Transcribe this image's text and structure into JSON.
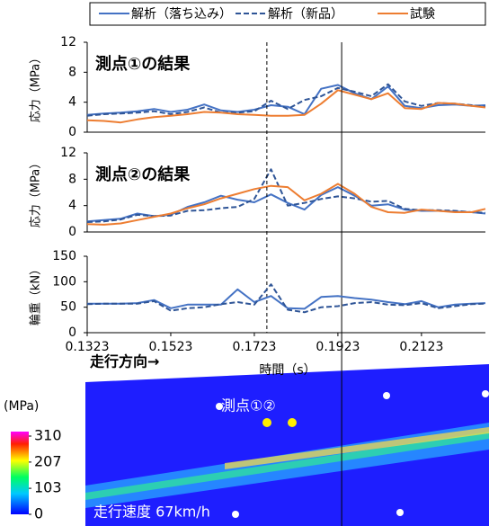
{
  "chart_data": [
    {
      "type": "line",
      "title": "測点①の結果",
      "ylabel": "応力（MPa）",
      "x": [
        0.1323,
        0.1363,
        0.1403,
        0.1443,
        0.1483,
        0.1523,
        0.1563,
        0.1603,
        0.1643,
        0.1683,
        0.1723,
        0.1763,
        0.1803,
        0.1843,
        0.1883,
        0.1923,
        0.1963,
        0.2003,
        0.2043,
        0.2083,
        0.2123,
        0.2163,
        0.2203,
        0.2243,
        0.2276
      ],
      "series": [
        {
          "name": "解析（落ち込み）",
          "color": "#4472c4",
          "dash": false,
          "values": [
            2.3,
            2.5,
            2.6,
            2.8,
            3.1,
            2.7,
            3.0,
            3.7,
            2.9,
            2.7,
            3.0,
            3.6,
            3.4,
            2.4,
            5.8,
            6.3,
            5.2,
            4.4,
            6.1,
            3.5,
            3.2,
            3.6,
            3.7,
            3.5,
            3.6
          ]
        },
        {
          "name": "解析（新品）",
          "color": "#2f5597",
          "dash": true,
          "values": [
            2.2,
            2.4,
            2.5,
            2.6,
            2.8,
            2.4,
            2.7,
            3.3,
            2.6,
            2.6,
            2.8,
            4.2,
            3.1,
            4.3,
            4.8,
            5.9,
            5.4,
            4.8,
            6.4,
            4.1,
            3.5,
            3.9,
            3.8,
            3.6,
            3.4
          ]
        },
        {
          "name": "試験",
          "color": "#ed7d31",
          "dash": false,
          "values": [
            1.6,
            1.5,
            1.3,
            1.7,
            2.0,
            2.2,
            2.4,
            2.7,
            2.6,
            2.4,
            2.3,
            2.2,
            2.2,
            2.3,
            3.8,
            5.6,
            5.0,
            4.4,
            5.2,
            3.2,
            3.1,
            3.9,
            3.8,
            3.5,
            3.3
          ]
        }
      ],
      "xlim": [
        0.1323,
        0.2276
      ],
      "ylim": [
        0,
        12
      ],
      "yticks": [
        0,
        4,
        8,
        12
      ]
    },
    {
      "type": "line",
      "title": "測点②の結果",
      "ylabel": "応力（MPa）",
      "x": [
        0.1323,
        0.1363,
        0.1403,
        0.1443,
        0.1483,
        0.1523,
        0.1563,
        0.1603,
        0.1643,
        0.1683,
        0.1723,
        0.1763,
        0.1803,
        0.1843,
        0.1883,
        0.1923,
        0.1963,
        0.2003,
        0.2043,
        0.2083,
        0.2123,
        0.2163,
        0.2203,
        0.2243,
        0.2276
      ],
      "series": [
        {
          "name": "解析（落ち込み）",
          "color": "#4472c4",
          "dash": false,
          "values": [
            1.6,
            1.8,
            2.0,
            2.8,
            2.4,
            2.6,
            3.8,
            4.5,
            5.5,
            4.9,
            4.5,
            5.7,
            4.4,
            3.4,
            5.6,
            6.8,
            5.5,
            4.0,
            4.2,
            3.4,
            3.2,
            3.2,
            3.1,
            3.0,
            2.8
          ]
        },
        {
          "name": "解析（新品）",
          "color": "#2f5597",
          "dash": true,
          "values": [
            1.5,
            1.6,
            1.9,
            2.6,
            2.4,
            2.5,
            3.2,
            3.3,
            3.6,
            3.8,
            5.0,
            9.5,
            4.0,
            4.4,
            5.0,
            5.4,
            5.1,
            4.6,
            4.7,
            3.5,
            3.3,
            3.3,
            3.2,
            3.0,
            2.9
          ]
        },
        {
          "name": "試験",
          "color": "#ed7d31",
          "dash": false,
          "values": [
            1.2,
            1.1,
            1.3,
            1.8,
            2.3,
            2.8,
            3.6,
            4.2,
            5.1,
            5.8,
            6.5,
            7.0,
            6.8,
            4.8,
            5.8,
            7.3,
            5.8,
            3.8,
            3.0,
            2.9,
            3.4,
            3.2,
            3.0,
            3.0,
            3.5
          ]
        }
      ],
      "xlim": [
        0.1323,
        0.2276
      ],
      "ylim": [
        0,
        12
      ],
      "yticks": [
        0,
        4,
        8,
        12
      ]
    },
    {
      "type": "line",
      "ylabel": "輪重（kN）",
      "xlabel": "時間（s）",
      "x": [
        0.1323,
        0.1363,
        0.1403,
        0.1443,
        0.1483,
        0.1523,
        0.1563,
        0.1603,
        0.1643,
        0.1683,
        0.1723,
        0.1763,
        0.1803,
        0.1843,
        0.1883,
        0.1923,
        0.1963,
        0.2003,
        0.2043,
        0.2083,
        0.2123,
        0.2163,
        0.2203,
        0.2243,
        0.2276
      ],
      "series": [
        {
          "name": "解析（落ち込み）",
          "color": "#4472c4",
          "dash": false,
          "values": [
            57,
            57,
            57,
            58,
            64,
            48,
            55,
            55,
            55,
            85,
            60,
            72,
            48,
            47,
            70,
            72,
            68,
            65,
            60,
            56,
            62,
            50,
            55,
            57,
            58
          ]
        },
        {
          "name": "解析（新品）",
          "color": "#2f5597",
          "dash": true,
          "values": [
            56,
            57,
            57,
            57,
            62,
            43,
            48,
            50,
            56,
            60,
            55,
            95,
            45,
            40,
            50,
            52,
            58,
            60,
            55,
            54,
            58,
            48,
            52,
            56,
            57
          ]
        }
      ],
      "xlim": [
        0.1323,
        0.2276
      ],
      "ylim": [
        0,
        150
      ],
      "yticks": [
        0,
        50,
        100,
        150
      ],
      "xticks": [
        0.1323,
        0.1523,
        0.1723,
        0.1923,
        0.2123
      ],
      "vlines": [
        {
          "x": 0.1753,
          "dash": true
        },
        {
          "x": 0.1932,
          "dash": false
        }
      ]
    }
  ],
  "contour": {
    "unit": "(MPa)",
    "lim": [
      0,
      310
    ],
    "ticks": [
      0,
      103,
      207,
      310
    ],
    "direction_label": "走行方向→",
    "point_label": "測点①②",
    "speed_label": "走行速度 67km/h"
  }
}
